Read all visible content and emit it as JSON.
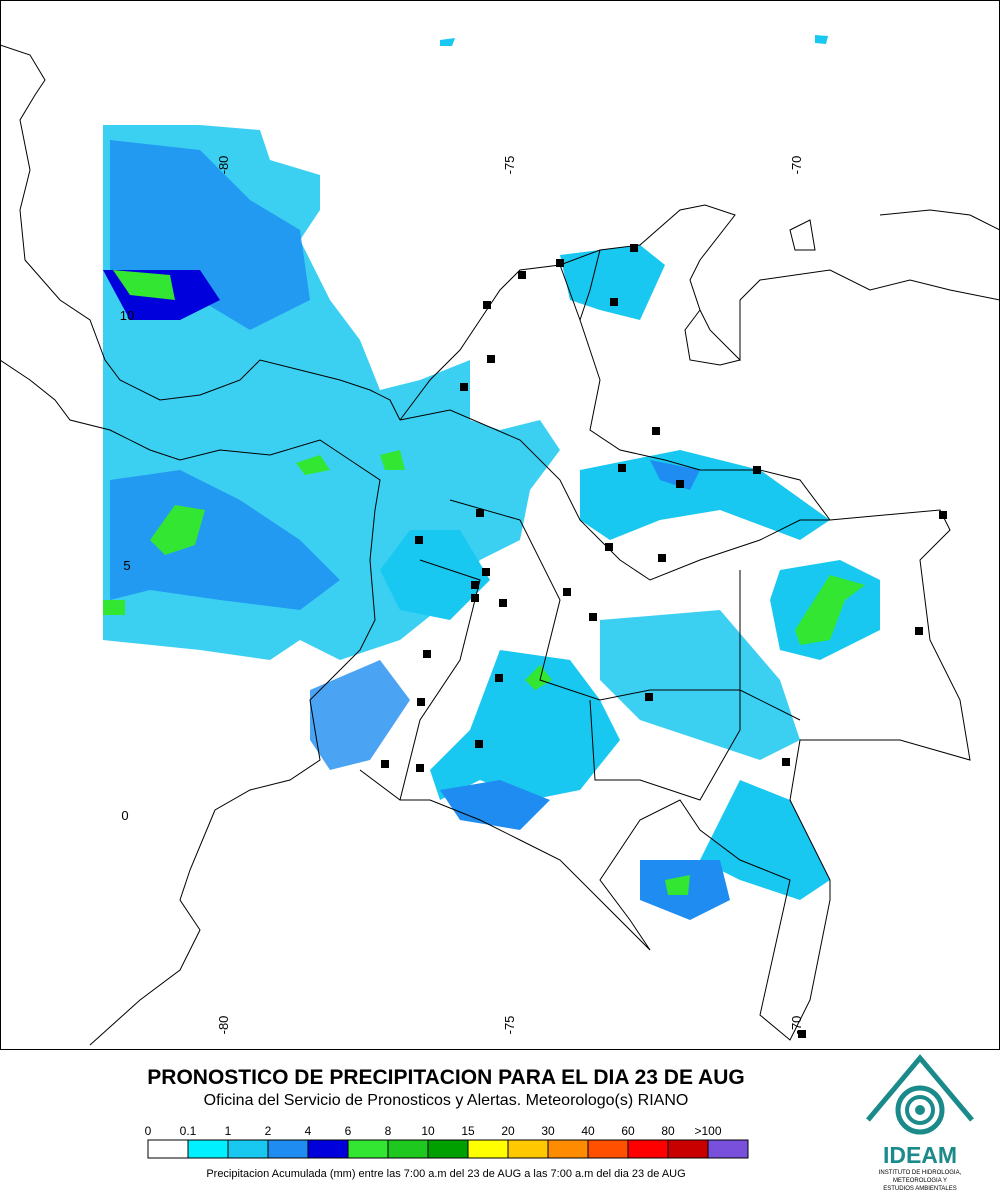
{
  "map": {
    "lon_labels_top": [
      "-80",
      "-75",
      "-70"
    ],
    "lon_labels_bottom": [
      "-80",
      "-75",
      "-70"
    ],
    "lat_labels": [
      "10",
      "5",
      "0"
    ]
  },
  "footer": {
    "title": "PRONOSTICO DE PRECIPITACION PARA EL DIA 23 DE AUG",
    "subtitle": "Oficina del Servicio de Pronosticos y Alertas. Meteorologo(s) RIANO",
    "caption": "Precipitacion Acumulada (mm) entre las 7:00 a.m del 23 de AUG a las 7:00 a.m del dia 23 de AUG"
  },
  "legend": {
    "labels": [
      "0",
      "0.1",
      "1",
      "2",
      "4",
      "6",
      "8",
      "10",
      "15",
      "20",
      "30",
      "40",
      "60",
      "80",
      ">100"
    ],
    "colors": [
      "#ffffff",
      "#00f0ff",
      "#19c8f0",
      "#1e8cf0",
      "#0000dc",
      "#32e632",
      "#1ec81e",
      "#00a000",
      "#ffff00",
      "#ffc800",
      "#ff8c00",
      "#ff5000",
      "#ff0000",
      "#c80000",
      "#7850dc"
    ]
  },
  "logo": {
    "name": "IDEAM",
    "lines": [
      "INSTITUTO DE HIDROLOGIA,",
      "METEOROLOGIA Y",
      "ESTUDIOS AMBIENTALES"
    ]
  }
}
